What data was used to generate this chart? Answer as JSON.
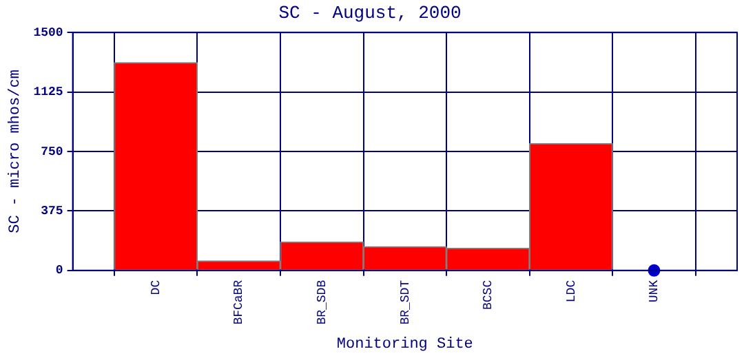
{
  "chart_data": {
    "type": "bar",
    "title": "SC - August, 2000",
    "xlabel": "Monitoring Site",
    "ylabel": "SC - micro mhos/cm",
    "categories": [
      "DC",
      "BFCaBR",
      "BR_SDB",
      "BR_SDT",
      "BCSC",
      "LDC",
      "UNK"
    ],
    "series": [
      {
        "color": "#ff0000",
        "values": [
          1310,
          60,
          180,
          150,
          140,
          800,
          null
        ]
      },
      {
        "type": "scatter",
        "color": "#0000cc",
        "x": [
          "UNK"
        ],
        "values": [
          0
        ]
      }
    ],
    "ylim": [
      0,
      1500
    ],
    "yticks": [
      0,
      375,
      750,
      1125,
      1500
    ],
    "grid": true,
    "legend": false
  }
}
